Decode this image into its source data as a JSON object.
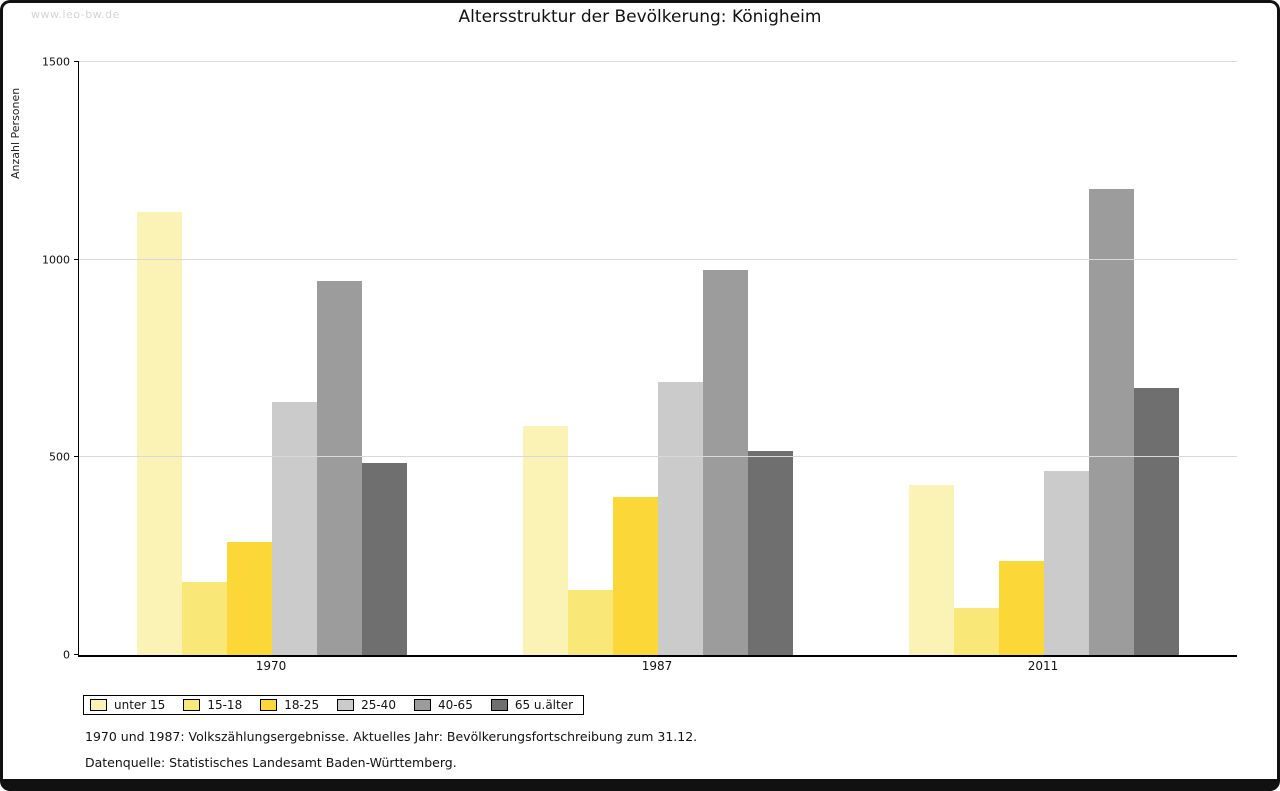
{
  "page": {
    "watermark": "www.leo-bw.de",
    "footnote1": "1970 und 1987: Volkszählungsergebnisse. Aktuelles Jahr: Bevölkerungsfortschreibung zum 31.12.",
    "footnote2": "Datenquelle: Statistisches Landesamt Baden-Württemberg."
  },
  "chart_data": {
    "type": "bar",
    "title": "Altersstruktur der Bevölkerung: Königheim",
    "ylabel": "Anzahl Personen",
    "xlabel": "",
    "ylim": [
      0,
      1500
    ],
    "yticks": [
      0,
      500,
      1000,
      1500
    ],
    "grid": true,
    "legend_position": "bottom-left",
    "categories": [
      "1970",
      "1987",
      "2011"
    ],
    "series": [
      {
        "name": "unter 15",
        "color": "#fbf3b5",
        "values": [
          1120,
          580,
          430
        ]
      },
      {
        "name": "15-18",
        "color": "#f9e878",
        "values": [
          185,
          165,
          120
        ]
      },
      {
        "name": "18-25",
        "color": "#fbd737",
        "values": [
          285,
          400,
          238
        ]
      },
      {
        "name": "25-40",
        "color": "#cbcbcb",
        "values": [
          640,
          690,
          465
        ]
      },
      {
        "name": "40-65",
        "color": "#9c9c9c",
        "values": [
          945,
          975,
          1180
        ]
      },
      {
        "name": "65 u.älter",
        "color": "#6f6f6f",
        "values": [
          485,
          515,
          675
        ]
      }
    ]
  }
}
